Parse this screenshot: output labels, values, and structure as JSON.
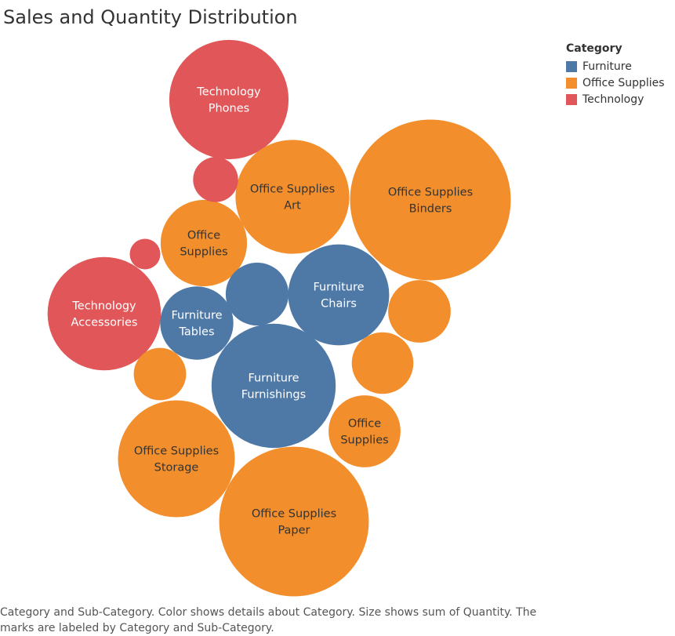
{
  "chart_data": {
    "type": "packed-bubble",
    "title": "Sales and Quantity Distribution",
    "size_measure": "sum of Quantity",
    "legend": {
      "title": "Category",
      "placement": "top-right",
      "items": [
        {
          "label": "Furniture",
          "color": "#4e79a7"
        },
        {
          "label": "Office Supplies",
          "color": "#f28e2b"
        },
        {
          "label": "Technology",
          "color": "#e15759"
        }
      ]
    },
    "bubbles": [
      {
        "category": "Office Supplies",
        "sub_category": "Binders",
        "quantity": 5974,
        "label": [
          "Office Supplies",
          "Binders"
        ]
      },
      {
        "category": "Office Supplies",
        "sub_category": "Paper",
        "quantity": 5178,
        "label": [
          "Office Supplies",
          "Paper"
        ]
      },
      {
        "category": "Furniture",
        "sub_category": "Furnishings",
        "quantity": 3563,
        "label": [
          "Furniture",
          "Furnishings"
        ]
      },
      {
        "category": "Technology",
        "sub_category": "Phones",
        "quantity": 3289,
        "label": [
          "Technology",
          "Phones"
        ]
      },
      {
        "category": "Office Supplies",
        "sub_category": "Storage",
        "quantity": 3158,
        "label": [
          "Office Supplies",
          "Storage"
        ]
      },
      {
        "category": "Office Supplies",
        "sub_category": "Art",
        "quantity": 3000,
        "label": [
          "Office Supplies",
          "Art"
        ]
      },
      {
        "category": "Technology",
        "sub_category": "Accessories",
        "quantity": 2976,
        "label": [
          "Technology",
          "Accessories"
        ]
      },
      {
        "category": "Furniture",
        "sub_category": "Chairs",
        "quantity": 2356,
        "label": [
          "Furniture",
          "Chairs"
        ]
      },
      {
        "category": "Office Supplies",
        "sub_category": "",
        "quantity": 1727,
        "label": [
          "Office",
          "Supplies"
        ]
      },
      {
        "category": "Furniture",
        "sub_category": "Tables",
        "quantity": 1241,
        "label": [
          "Furniture",
          "Tables"
        ]
      },
      {
        "category": "Office Supplies",
        "sub_category": "",
        "quantity": 1199,
        "label": [
          "Office",
          "Supplies"
        ]
      },
      {
        "category": "Furniture",
        "sub_category": "",
        "quantity": 914,
        "label": []
      },
      {
        "category": "Office Supplies",
        "sub_category": "",
        "quantity": 906,
        "label": []
      },
      {
        "category": "Office Supplies",
        "sub_category": "",
        "quantity": 876,
        "label": []
      },
      {
        "category": "Office Supplies",
        "sub_category": "",
        "quantity": 636,
        "label": []
      },
      {
        "category": "Technology",
        "sub_category": "",
        "quantity": 468,
        "label": []
      },
      {
        "category": "Technology",
        "sub_category": "",
        "quantity": 217,
        "label": []
      }
    ]
  },
  "caption": "Category and Sub-Category.  Color shows details about Category.  Size shows sum of Quantity.  The marks are labeled by Category and Sub-Category."
}
